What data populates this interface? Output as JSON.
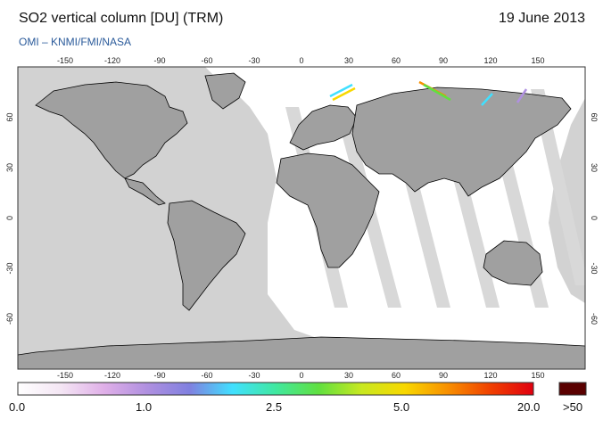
{
  "title": "SO2 vertical column [DU] (TRM)",
  "subtitle": "OMI  –  KNMI/FMI/NASA",
  "date": "19 June 2013",
  "map": {
    "projection": "equirectangular",
    "lon_range": [
      -180,
      180
    ],
    "lat_range": [
      -90,
      90
    ],
    "lon_ticks": [
      "-150",
      "-120",
      "-90",
      "-60",
      "-30",
      "0",
      "30",
      "60",
      "90",
      "120",
      "150"
    ],
    "lat_ticks_left": [
      "60",
      "30",
      "0",
      "-30",
      "-60"
    ],
    "lat_ticks_right": [
      "60",
      "30",
      "0",
      "-30",
      "-60"
    ],
    "colors": {
      "no_data": "#d2d2d2",
      "land_night": "#a0a0a0",
      "coastline": "#000000",
      "frame": "#333333"
    }
  },
  "colorbar": {
    "labels": [
      "0.0",
      "1.0",
      "2.5",
      "5.0",
      "20.0",
      ">50"
    ],
    "stops": [
      "#ffffff",
      "#f4e6f4",
      "#e0b0e8",
      "#b090e0",
      "#8080e0",
      "#40e0ff",
      "#40e8a0",
      "#60e040",
      "#c8e820",
      "#f8d800",
      "#f89000",
      "#f04000",
      "#e00010"
    ],
    "overflow_color": "#5a0000"
  }
}
